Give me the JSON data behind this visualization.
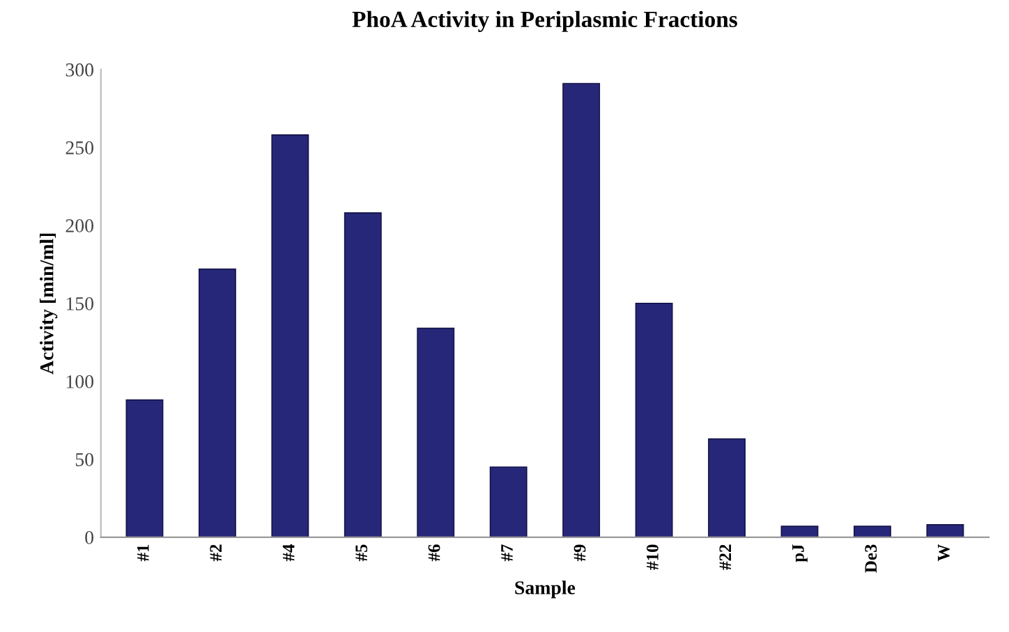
{
  "chart_data": {
    "type": "bar",
    "title": "PhoA Activity in Periplasmic Fractions",
    "xlabel": "Sample",
    "ylabel": "Activity [min/ml]",
    "categories": [
      "#1",
      "#2",
      "#4",
      "#5",
      "#6",
      "#7",
      "#9",
      "#10",
      "#22",
      "pJ",
      "De3",
      "W"
    ],
    "values": [
      88,
      172,
      258,
      208,
      134,
      45,
      291,
      150,
      63,
      7,
      7,
      8
    ],
    "color": "#27277a",
    "ylim": [
      0,
      300
    ],
    "yticks": [
      0,
      50,
      100,
      150,
      200,
      250,
      300
    ],
    "grid": false,
    "legend": false
  }
}
